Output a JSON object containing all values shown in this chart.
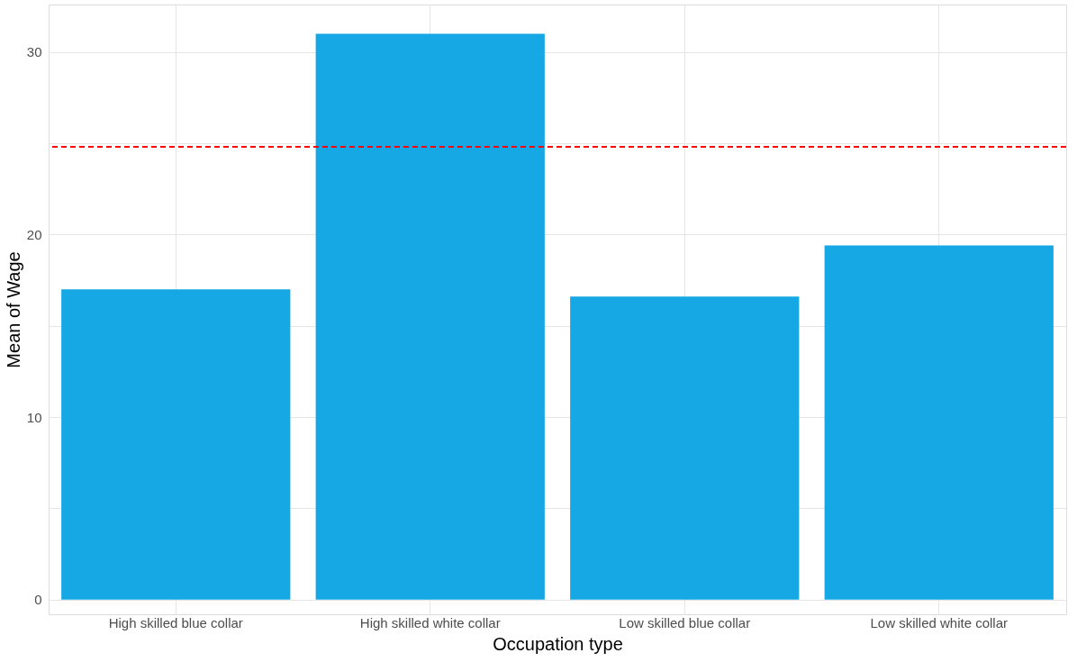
{
  "chart_data": {
    "type": "bar",
    "xlabel": "Occupation type",
    "ylabel": "Mean of Wage",
    "categories": [
      "High skilled blue collar",
      "High skilled white collar",
      "Low skilled blue collar",
      "Low skilled white collar"
    ],
    "values": [
      17.0,
      31.0,
      16.6,
      19.4
    ],
    "color": "#15a8e5",
    "ylim": [
      -0.8,
      32.6
    ],
    "yticks": [
      0,
      {
        "value": 5,
        "label": null
      },
      10,
      {
        "value": 15,
        "label": null
      },
      20,
      {
        "value": 25,
        "label": null
      },
      30
    ],
    "grid": true,
    "ref_lines": [
      {
        "axis": "y",
        "value": 24.8,
        "color": "#ff0000",
        "line_style": "dashed"
      }
    ]
  }
}
